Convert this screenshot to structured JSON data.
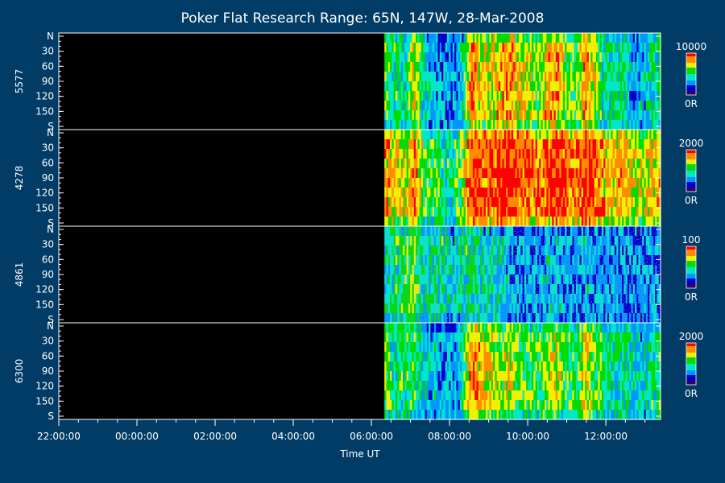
{
  "chart_data": {
    "type": "heatmap",
    "title": "Poker Flat Research Range: 65N, 147W, 28-Mar-2008",
    "xlabel": "Time UT",
    "x_tick_labels": [
      "22:00:00",
      "00:00:00",
      "02:00:00",
      "04:00:00",
      "06:00:00",
      "08:00:00",
      "10:00:00",
      "12:00:00"
    ],
    "x_range_hours_ut": [
      22.0,
      13.4
    ],
    "data_start_time": "06:20:00",
    "y_tick_labels": [
      "N",
      "30",
      "60",
      "90",
      "120",
      "150",
      "S"
    ],
    "y_range": [
      0,
      180
    ],
    "colormap": [
      "#3c0050",
      "#0000c8",
      "#0096ff",
      "#00e6c8",
      "#00dc00",
      "#f0f000",
      "#ff8c00",
      "#ff0000"
    ],
    "panels": [
      {
        "name": "5577",
        "colorbar_max": "10000",
        "colorbar_min": "0R",
        "intensity_profile": [
          0.55,
          0.5,
          0.45,
          0.75,
          0.4,
          0.35,
          0.3,
          0.3,
          0.35,
          0.85,
          0.75,
          0.7,
          0.8,
          0.85,
          0.7,
          0.7,
          0.6,
          0.8,
          0.85,
          0.6,
          0.55,
          0.85,
          0.7,
          0.45,
          0.4,
          0.5,
          0.3,
          0.35,
          0.45,
          0.5
        ]
      },
      {
        "name": "4278",
        "colorbar_max": "2000",
        "colorbar_min": "0R",
        "intensity_profile": [
          0.8,
          0.75,
          0.7,
          0.85,
          0.6,
          0.55,
          0.5,
          0.45,
          0.6,
          1.0,
          0.95,
          0.9,
          0.95,
          1.0,
          0.95,
          0.9,
          0.85,
          0.9,
          1.0,
          0.9,
          0.85,
          1.0,
          0.9,
          0.8,
          0.75,
          0.85,
          0.7,
          0.65,
          0.75,
          0.8
        ]
      },
      {
        "name": "4861",
        "colorbar_max": "100",
        "colorbar_min": "0R",
        "intensity_profile": [
          0.4,
          0.5,
          0.55,
          0.6,
          0.45,
          0.45,
          0.5,
          0.35,
          0.45,
          0.5,
          0.45,
          0.4,
          0.4,
          0.35,
          0.3,
          0.3,
          0.3,
          0.35,
          0.35,
          0.3,
          0.3,
          0.35,
          0.3,
          0.3,
          0.3,
          0.3,
          0.25,
          0.25,
          0.3,
          0.3
        ]
      },
      {
        "name": "6300",
        "colorbar_max": "2000",
        "colorbar_min": "0R",
        "intensity_profile": [
          0.55,
          0.5,
          0.5,
          0.55,
          0.4,
          0.35,
          0.3,
          0.3,
          0.4,
          0.85,
          0.8,
          0.7,
          0.6,
          0.7,
          0.6,
          0.55,
          0.55,
          0.6,
          0.7,
          0.55,
          0.5,
          0.7,
          0.6,
          0.5,
          0.45,
          0.5,
          0.4,
          0.35,
          0.5,
          0.5
        ]
      }
    ]
  }
}
